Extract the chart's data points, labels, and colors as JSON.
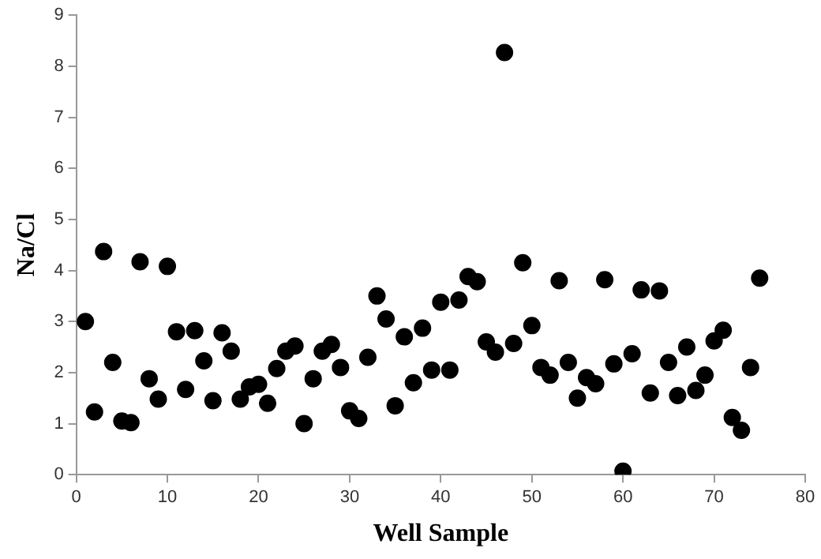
{
  "chart_data": {
    "type": "scatter",
    "xlabel": "Well Sample",
    "ylabel": "Na/Cl",
    "marker": "circle",
    "grid": false,
    "legend": false,
    "xlim": [
      0,
      80
    ],
    "xticks": [
      0,
      10,
      20,
      30,
      40,
      50,
      60,
      70,
      80
    ],
    "ylim": [
      0,
      9
    ],
    "yticks": [
      0,
      1,
      2,
      3,
      4,
      5,
      6,
      7,
      8,
      9
    ],
    "series": [
      {
        "color": "#000000",
        "x": [
          1,
          2,
          3,
          4,
          5,
          6,
          7,
          8,
          9,
          10,
          11,
          12,
          13,
          14,
          15,
          16,
          17,
          18,
          19,
          20,
          21,
          22,
          23,
          24,
          25,
          26,
          27,
          28,
          29,
          30,
          31,
          32,
          33,
          34,
          35,
          36,
          37,
          38,
          39,
          40,
          41,
          42,
          43,
          44,
          45,
          46,
          47,
          48,
          49,
          50,
          51,
          52,
          53,
          54,
          55,
          56,
          57,
          58,
          59,
          60,
          61,
          62,
          63,
          64,
          65,
          66,
          67,
          68,
          69,
          70,
          71,
          72,
          73,
          74,
          75
        ],
        "values": [
          3.0,
          1.23,
          4.37,
          2.2,
          1.05,
          1.02,
          4.17,
          1.88,
          1.48,
          4.08,
          2.8,
          1.67,
          2.82,
          2.23,
          1.45,
          2.78,
          2.42,
          1.48,
          1.72,
          1.77,
          1.4,
          2.08,
          2.42,
          2.52,
          1.0,
          1.88,
          2.42,
          2.55,
          2.1,
          1.25,
          1.1,
          2.3,
          3.5,
          3.05,
          1.35,
          2.7,
          1.8,
          2.87,
          2.05,
          3.38,
          2.05,
          3.42,
          3.88,
          3.78,
          2.6,
          2.4,
          8.27,
          2.57,
          4.15,
          2.92,
          2.1,
          1.95,
          3.8,
          2.2,
          1.5,
          1.9,
          1.78,
          3.82,
          2.17,
          0.07,
          2.37,
          3.62,
          1.6,
          3.6,
          2.2,
          1.55,
          2.5,
          1.65,
          1.95,
          2.62,
          2.83,
          1.12,
          0.87,
          2.1,
          3.85
        ]
      }
    ]
  }
}
